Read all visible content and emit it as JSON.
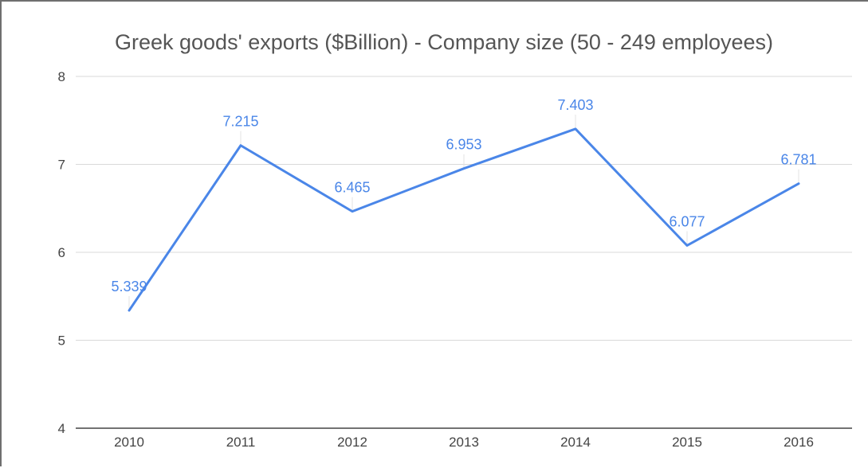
{
  "chart_data": {
    "type": "line",
    "title": "Greek goods' exports ($Billion) - Company size (50 - 249 employees)",
    "xlabel": "",
    "ylabel": "",
    "categories": [
      "2010",
      "2011",
      "2012",
      "2013",
      "2014",
      "2015",
      "2016"
    ],
    "values": [
      5.339,
      7.215,
      6.465,
      6.953,
      7.403,
      6.077,
      6.781
    ],
    "data_labels": [
      "5.339",
      "7.215",
      "6.465",
      "6.953",
      "7.403",
      "6.077",
      "6.781"
    ],
    "ylim": [
      4,
      8
    ],
    "y_ticks": [
      "4",
      "5",
      "6",
      "7",
      "8"
    ],
    "grid": true,
    "legend": "none",
    "colors": {
      "line": "#4a86e8",
      "grid": "#d9d9d9",
      "axis": "#444444",
      "title": "#555555"
    }
  }
}
